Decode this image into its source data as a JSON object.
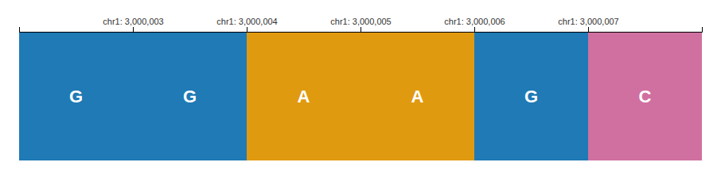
{
  "chart_data": {
    "type": "bar",
    "bins": [
      0,
      1,
      2,
      3,
      4,
      5,
      6
    ],
    "values": [
      1,
      1,
      1,
      1,
      1,
      1
    ],
    "colors": [
      "#1f7ab5",
      "#1f7ab5",
      "#e09a10",
      "#e09a10",
      "#1f7ab5",
      "#d070a0"
    ],
    "annotations": [
      "G",
      "G",
      "A",
      "A",
      "G",
      "C"
    ],
    "xlim": [
      0,
      6
    ],
    "ylim": [
      0,
      1
    ],
    "xticks": [
      {
        "value": 1,
        "label": "chr1: 3,000,003"
      },
      {
        "value": 2,
        "label": "chr1: 3,000,004"
      },
      {
        "value": 3,
        "label": "chr1: 3,000,005"
      },
      {
        "value": 4,
        "label": "chr1: 3,000,006"
      },
      {
        "value": 5,
        "label": "chr1: 3,000,007"
      }
    ],
    "tick_labels": "x"
  }
}
